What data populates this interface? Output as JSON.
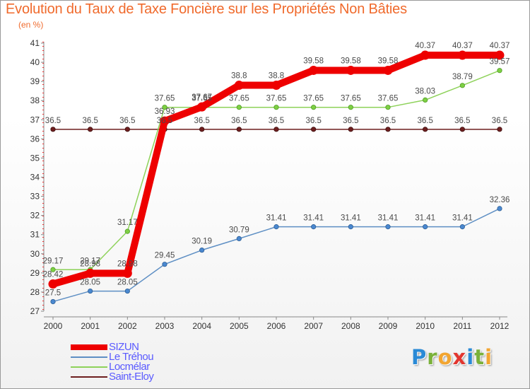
{
  "title": "Evolution du Taux de Taxe Foncière sur les Propriétés Non Bâties",
  "subtitle": "(en %)",
  "brand": {
    "letters": [
      "P",
      "r",
      "o",
      "x",
      "i",
      "t",
      "i"
    ],
    "colors": [
      "#2a8ad6",
      "#7ab13a",
      "#f2a531",
      "#e2362f",
      "#2a8ad6",
      "#7ab13a",
      "#f2a531"
    ]
  },
  "chart_data": {
    "type": "line",
    "title": "Evolution du Taux de Taxe Foncière sur les Propriétés Non Bâties",
    "ylabel": "(en %)",
    "xlabel": "",
    "ylim": [
      27,
      41
    ],
    "yticks": [
      27,
      28,
      29,
      30,
      31,
      32,
      33,
      34,
      35,
      36,
      37,
      38,
      39,
      40,
      41
    ],
    "categories": [
      "2000",
      "2001",
      "2002",
      "2003",
      "2004",
      "2005",
      "2006",
      "2007",
      "2008",
      "2009",
      "2010",
      "2011",
      "2012"
    ],
    "legend_position": "bottom-left",
    "series": [
      {
        "name": "Saint-Eloy",
        "color": "#6e1f1f",
        "values": [
          36.5,
          36.5,
          36.5,
          36.5,
          36.5,
          36.5,
          36.5,
          36.5,
          36.5,
          36.5,
          36.5,
          36.5,
          36.5
        ],
        "labels": [
          "36.5",
          "36.5",
          "36.5",
          "36.5",
          "36.5",
          "36.5",
          "36.5",
          "36.5",
          "36.5",
          "36.5",
          "36.5",
          "36.5",
          "36.5"
        ]
      },
      {
        "name": "Le Tréhou",
        "color": "#5e8fc4",
        "values": [
          27.5,
          28.05,
          28.05,
          29.45,
          30.19,
          30.79,
          31.41,
          31.41,
          31.41,
          31.41,
          31.41,
          31.41,
          32.36
        ],
        "labels": [
          "27.5",
          "28.05",
          "28.05",
          "29.45",
          "30.19",
          "30.79",
          "31.41",
          "31.41",
          "31.41",
          "31.41",
          "31.41",
          "31.41",
          "32.36"
        ]
      },
      {
        "name": "Locmélar",
        "color": "#8ed25a",
        "values": [
          29.17,
          29.17,
          31.17,
          37.65,
          37.65,
          37.65,
          37.65,
          37.65,
          37.65,
          37.65,
          38.03,
          38.79,
          39.57
        ],
        "labels": [
          "29.17",
          "29.17",
          "31.17",
          "37.65",
          "37.65",
          "37.65",
          "37.65",
          "37.65",
          "37.65",
          "37.65",
          "38.03",
          "38.79",
          "39.57"
        ]
      },
      {
        "name": "SIZUN",
        "color": "#ee0000",
        "values": [
          28.42,
          28.98,
          28.98,
          36.93,
          37.67,
          38.8,
          38.8,
          39.58,
          39.58,
          39.58,
          40.37,
          40.37,
          40.37
        ],
        "labels": [
          "28.42",
          "28.98",
          "28.98",
          "36.93",
          "37.67",
          "38.8",
          "38.8",
          "39.58",
          "39.58",
          "39.58",
          "40.37",
          "40.37",
          "40.37"
        ]
      }
    ],
    "legend_order": [
      "SIZUN",
      "Le Tréhou",
      "Locmélar",
      "Saint-Eloy"
    ]
  }
}
